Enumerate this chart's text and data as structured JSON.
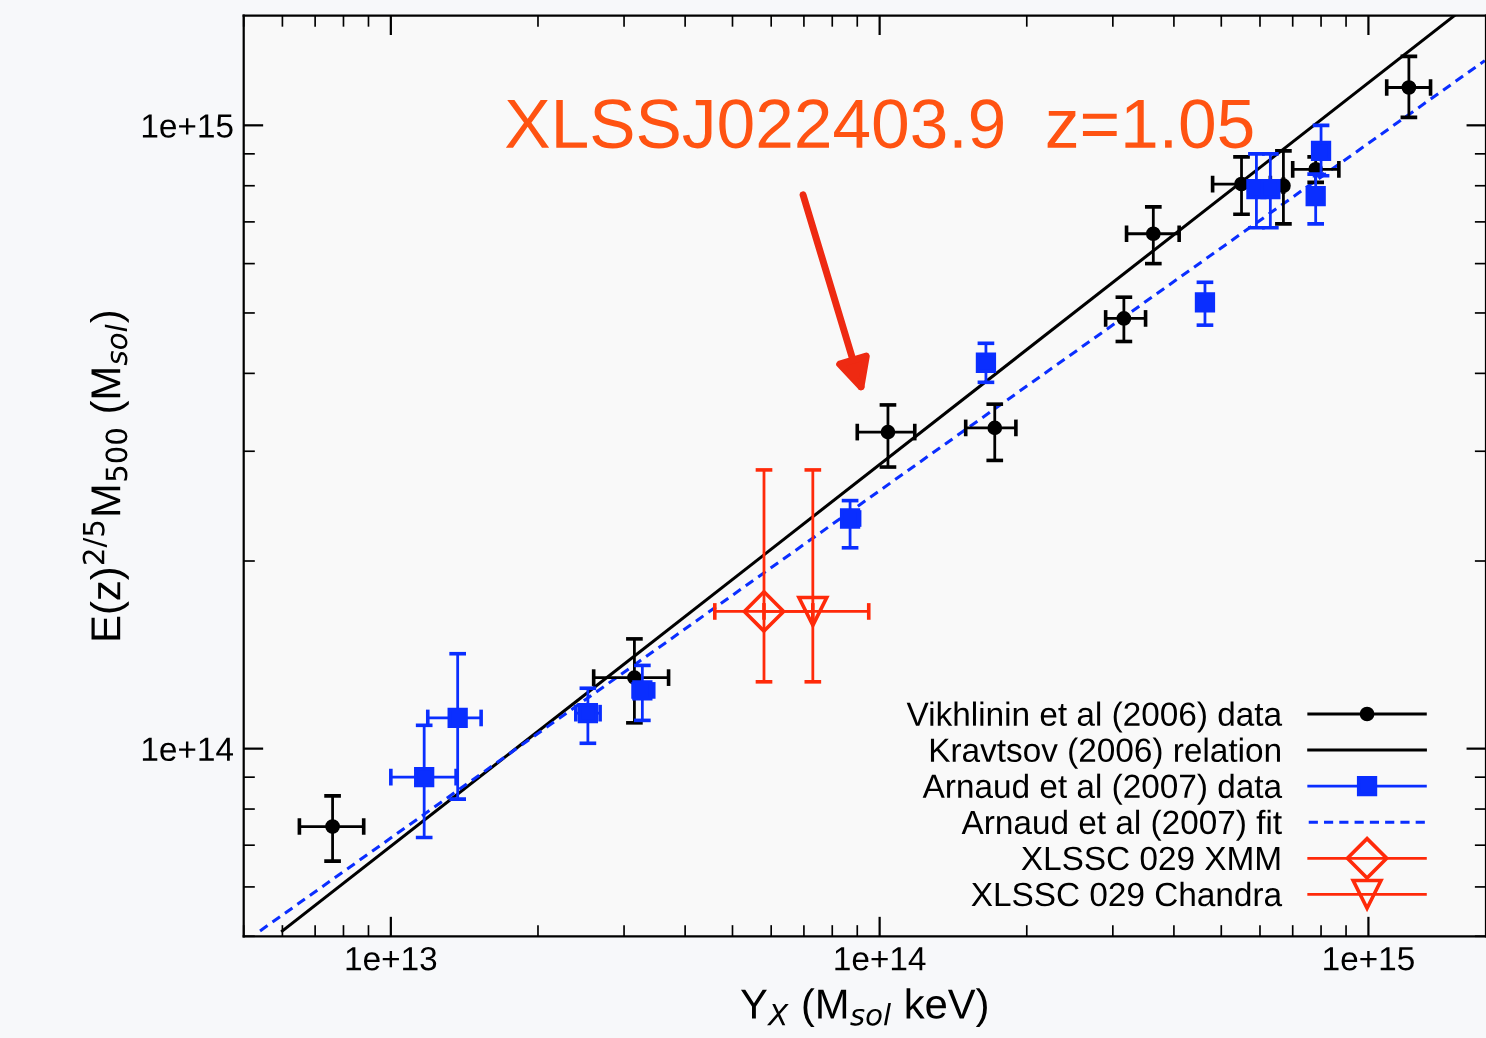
{
  "chart_data": {
    "type": "scatter",
    "xlabel": "Y$_{X}$ (M$_{sol}$ keV)",
    "ylabel": "E(z)$^{2/5}$M$_{500}$ (M$_{sol}$)",
    "log": "xy",
    "xlim": [
      5000000000000.0,
      1740000000000000.0
    ],
    "ylim": [
      50000000000000.0,
      1500000000000000.0
    ],
    "xticks": [
      {
        "value": 10000000000000.0,
        "label": "1e+13"
      },
      {
        "value": 100000000000000.0,
        "label": "1e+14"
      },
      {
        "value": 1000000000000000.0,
        "label": "1e+15"
      }
    ],
    "yticks": [
      {
        "value": 100000000000000.0,
        "label": "1e+14"
      },
      {
        "value": 1000000000000000.0,
        "label": "1e+15"
      }
    ],
    "grid": false,
    "legend": "bottom right",
    "annotations": [
      "XLSSJ022403.9  z=1.05"
    ],
    "series": [
      {
        "name": "Vikhlinin et al (2006) data",
        "type": "scatter",
        "marker": "circle",
        "color": "#000000",
        "x": [
          7600000000000.0,
          31500000000000.0,
          104000000000000.0,
          172000000000000.0,
          316000000000000.0,
          363000000000000.0,
          550000000000000.0,
          670000000000000.0,
          780000000000000.0,
          1210000000000000.0
        ],
        "values": [
          75000000000000.0,
          130000000000000.0,
          322000000000000.0,
          327000000000000.0,
          490000000000000.0,
          670000000000000.0,
          805000000000000.0,
          800000000000000.0,
          850000000000000.0,
          1150000000000000.0
        ],
        "errors": [
          [
            66000000000000.0,
            84000000000000.0
          ],
          [
            110000000000000.0,
            150000000000000.0
          ],
          [
            283000000000000.0,
            356000000000000.0
          ],
          [
            290000000000000.0,
            357000000000000.0
          ],
          [
            450000000000000.0,
            530000000000000.0
          ],
          [
            600000000000000.0,
            740000000000000.0
          ],
          [
            720000000000000.0,
            890000000000000.0
          ],
          [
            695000000000000.0,
            910000000000000.0
          ],
          [
            810000000000000.0,
            890000000000000.0
          ],
          [
            1030000000000000.0,
            1290000000000000.0
          ]
        ],
        "xerrors": [
          [
            6500000000000.0,
            8800000000000.0
          ],
          [
            26000000000000.0,
            37000000000000.0
          ],
          [
            90000000000000.0,
            118000000000000.0
          ],
          [
            150000000000000.0,
            190000000000000.0
          ],
          [
            290000000000000.0,
            350000000000000.0
          ],
          [
            320000000000000.0,
            410000000000000.0
          ],
          [
            480000000000000.0,
            630000000000000.0
          ],
          null,
          [
            700000000000000.0,
            870000000000000.0
          ],
          [
            1090000000000000.0,
            1340000000000000.0
          ]
        ]
      },
      {
        "name": "Kravtsov (2006) relation",
        "type": "line",
        "line_style": "solid",
        "color": "#000000",
        "x": [
          6000000000000.0,
          1500000000000000.0
        ],
        "values": [
          51000000000000.0,
          1500000000000000.0
        ]
      },
      {
        "name": "Arnaud et al (2007) data",
        "type": "scatter",
        "marker": "square",
        "color": "#0a2eff",
        "x": [
          11700000000000.0,
          13700000000000.0,
          25300000000000.0,
          32700000000000.0,
          87000000000000.0,
          165000000000000.0,
          463000000000000.0,
          590000000000000.0,
          630000000000000.0,
          800000000000000.0,
          780000000000000.0
        ],
        "values": [
          90000000000000.0,
          112000000000000.0,
          114000000000000.0,
          124000000000000.0,
          234000000000000.0,
          416000000000000.0,
          520000000000000.0,
          790000000000000.0,
          790000000000000.0,
          910000000000000.0,
          770000000000000.0
        ],
        "errors": [
          [
            72000000000000.0,
            109000000000000.0
          ],
          [
            83000000000000.0,
            142000000000000.0
          ],
          [
            102000000000000.0,
            125000000000000.0
          ],
          [
            111000000000000.0,
            136000000000000.0
          ],
          [
            210000000000000.0,
            250000000000000.0
          ],
          [
            387000000000000.0,
            447000000000000.0
          ],
          [
            478000000000000.0,
            560000000000000.0
          ],
          [
            685000000000000.0,
            900000000000000.0
          ],
          [
            685000000000000.0,
            900000000000000.0
          ],
          [
            830000000000000.0,
            1000000000000000.0
          ],
          [
            695000000000000.0,
            835000000000000.0
          ]
        ],
        "xerrors": [
          [
            10000000000000.0,
            13600000000000.0
          ],
          [
            11900000000000.0,
            15300000000000.0
          ],
          [
            23900000000000.0,
            26800000000000.0
          ],
          [
            31300000000000.0,
            34500000000000.0
          ],
          [
            84000000000000.0,
            91000000000000.0
          ],
          null,
          null,
          null,
          null,
          null,
          null
        ]
      },
      {
        "name": "Arnaud et al (2007) fit",
        "type": "line",
        "line_style": "dashed",
        "color": "#0a2eff",
        "x": [
          5400000000000.0,
          1730000000000000.0
        ],
        "values": [
          51000000000000.0,
          1270000000000000.0
        ]
      },
      {
        "name": "XLSSC 029 XMM",
        "type": "scatter",
        "marker": "diamond",
        "color": "#ff2a0a",
        "x": [
          58000000000000.0
        ],
        "values": [
          166000000000000.0
        ],
        "errors": [
          [
            128000000000000.0,
            280000000000000.0
          ]
        ],
        "xerrors": [
          [
            46000000000000.0,
            73000000000000.0
          ]
        ]
      },
      {
        "name": "XLSSC 029 Chandra",
        "type": "scatter",
        "marker": "triangle",
        "color": "#ff2a0a",
        "x": [
          73000000000000.0
        ],
        "values": [
          166000000000000.0
        ],
        "errors": [
          [
            128000000000000.0,
            280000000000000.0
          ]
        ],
        "xerrors": [
          [
            58000000000000.0,
            95000000000000.0
          ]
        ]
      }
    ]
  }
}
